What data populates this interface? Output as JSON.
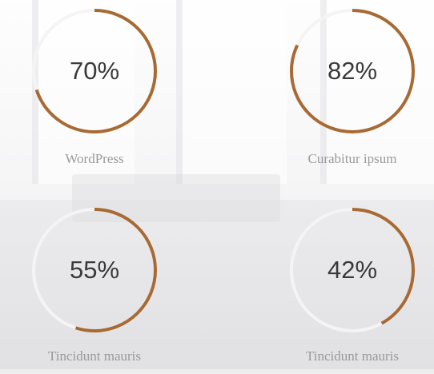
{
  "colors": {
    "ring": "#a86a33",
    "track": "#f4f4f4",
    "percent_text": "#3a3a3a",
    "label_text": "#9a9a9a"
  },
  "skills": [
    {
      "label": "WordPress",
      "percent_text": "70%",
      "value": 70
    },
    {
      "label": "Curabitur ipsum",
      "percent_text": "82%",
      "value": 82
    },
    {
      "label": "Tincidunt mauris",
      "percent_text": "55%",
      "value": 55
    },
    {
      "label": "Tincidunt mauris",
      "percent_text": "42%",
      "value": 42
    }
  ]
}
